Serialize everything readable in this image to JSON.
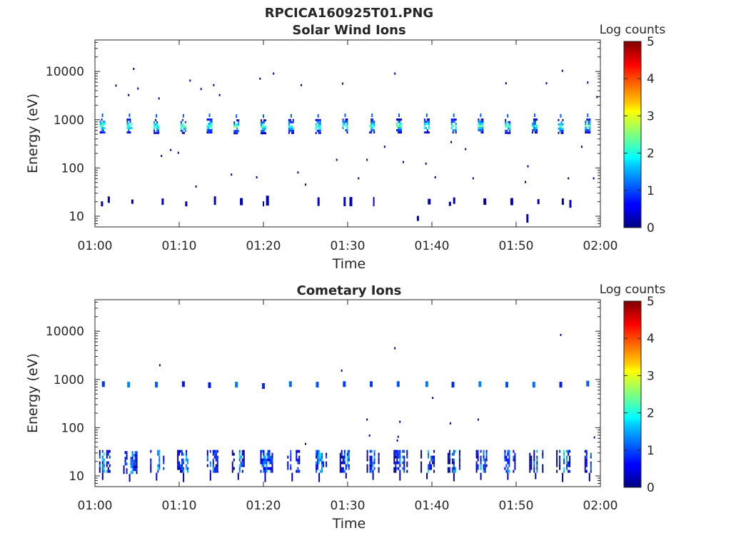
{
  "figure": {
    "title": "RPCICA160925T01.PNG"
  },
  "colorbar": {
    "label": "Log counts",
    "ticks": [
      "0",
      "1",
      "2",
      "3",
      "4",
      "5"
    ],
    "range": [
      0,
      5
    ],
    "colormap": "jet"
  },
  "chart_data": [
    {
      "type": "heatmap",
      "title": "Solar Wind Ions",
      "xlabel": "Time",
      "ylabel": "Energy (eV)",
      "x_ticks": [
        "01:00",
        "01:10",
        "01:20",
        "01:30",
        "01:40",
        "01:50",
        "02:00"
      ],
      "xlim_minutes": [
        0,
        60
      ],
      "y_scale": "log",
      "y_ticks": [
        "10",
        "100",
        "1000",
        "10000"
      ],
      "ylim": [
        6,
        45000
      ],
      "grid": false,
      "colorbar_label": "Log counts",
      "clim": [
        0,
        5
      ],
      "bursts": [
        {
          "t": 0.9,
          "energy": 780,
          "max_log_counts": 2.6
        },
        {
          "t": 4.1,
          "energy": 780,
          "max_log_counts": 2.6
        },
        {
          "t": 7.3,
          "energy": 760,
          "max_log_counts": 2.4
        },
        {
          "t": 10.5,
          "energy": 760,
          "max_log_counts": 2.6
        },
        {
          "t": 13.6,
          "energy": 780,
          "max_log_counts": 2.6
        },
        {
          "t": 16.8,
          "energy": 750,
          "max_log_counts": 2.5
        },
        {
          "t": 20.0,
          "energy": 750,
          "max_log_counts": 2.6
        },
        {
          "t": 23.3,
          "energy": 760,
          "max_log_counts": 2.4
        },
        {
          "t": 26.5,
          "energy": 760,
          "max_log_counts": 2.5
        },
        {
          "t": 29.7,
          "energy": 780,
          "max_log_counts": 2.5
        },
        {
          "t": 32.9,
          "energy": 780,
          "max_log_counts": 2.4
        },
        {
          "t": 36.1,
          "energy": 780,
          "max_log_counts": 2.6
        },
        {
          "t": 39.4,
          "energy": 780,
          "max_log_counts": 2.5
        },
        {
          "t": 42.6,
          "energy": 780,
          "max_log_counts": 2.4
        },
        {
          "t": 45.8,
          "energy": 780,
          "max_log_counts": 2.5
        },
        {
          "t": 49.0,
          "energy": 760,
          "max_log_counts": 2.4
        },
        {
          "t": 52.2,
          "energy": 780,
          "max_log_counts": 2.3
        },
        {
          "t": 55.3,
          "energy": 760,
          "max_log_counts": 2.4
        },
        {
          "t": 58.5,
          "energy": 780,
          "max_log_counts": 2.4
        }
      ],
      "low_energy_events": [
        {
          "t": 0.8,
          "energy": 18
        },
        {
          "t": 1.6,
          "energy": 22
        },
        {
          "t": 4.4,
          "energy": 20
        },
        {
          "t": 8.0,
          "energy": 20
        },
        {
          "t": 10.8,
          "energy": 18
        },
        {
          "t": 14.2,
          "energy": 21
        },
        {
          "t": 17.3,
          "energy": 20
        },
        {
          "t": 20.0,
          "energy": 18
        },
        {
          "t": 20.4,
          "energy": 21
        },
        {
          "t": 26.5,
          "energy": 20
        },
        {
          "t": 29.6,
          "energy": 20
        },
        {
          "t": 30.3,
          "energy": 20
        },
        {
          "t": 33.1,
          "energy": 20
        },
        {
          "t": 38.3,
          "energy": 9
        },
        {
          "t": 39.6,
          "energy": 20
        },
        {
          "t": 42.1,
          "energy": 18
        },
        {
          "t": 42.6,
          "energy": 21
        },
        {
          "t": 46.2,
          "energy": 20
        },
        {
          "t": 49.4,
          "energy": 20
        },
        {
          "t": 51.3,
          "energy": 9
        },
        {
          "t": 52.6,
          "energy": 20
        },
        {
          "t": 55.5,
          "energy": 20
        },
        {
          "t": 56.4,
          "energy": 18
        }
      ],
      "scatter": [
        {
          "t": 2.5,
          "energy": 5200
        },
        {
          "t": 4.6,
          "energy": 11500
        },
        {
          "t": 4.0,
          "energy": 3300
        },
        {
          "t": 5.1,
          "energy": 4500
        },
        {
          "t": 7.6,
          "energy": 2800
        },
        {
          "t": 11.3,
          "energy": 6600
        },
        {
          "t": 12.6,
          "energy": 4400
        },
        {
          "t": 14.1,
          "energy": 5300
        },
        {
          "t": 14.8,
          "energy": 3300
        },
        {
          "t": 19.6,
          "energy": 7200
        },
        {
          "t": 21.2,
          "energy": 9200
        },
        {
          "t": 24.5,
          "energy": 5300
        },
        {
          "t": 29.4,
          "energy": 5700
        },
        {
          "t": 35.6,
          "energy": 9200
        },
        {
          "t": 48.8,
          "energy": 5800
        },
        {
          "t": 53.6,
          "energy": 5800
        },
        {
          "t": 55.5,
          "energy": 10500
        },
        {
          "t": 58.5,
          "energy": 6000
        },
        {
          "t": 59.6,
          "energy": 3000
        },
        {
          "t": 7.9,
          "energy": 180
        },
        {
          "t": 9.0,
          "energy": 240
        },
        {
          "t": 9.9,
          "energy": 210
        },
        {
          "t": 12.0,
          "energy": 42
        },
        {
          "t": 16.2,
          "energy": 74
        },
        {
          "t": 19.2,
          "energy": 65
        },
        {
          "t": 24.1,
          "energy": 82
        },
        {
          "t": 25.0,
          "energy": 46
        },
        {
          "t": 28.7,
          "energy": 150
        },
        {
          "t": 31.3,
          "energy": 62
        },
        {
          "t": 32.3,
          "energy": 150
        },
        {
          "t": 34.4,
          "energy": 280
        },
        {
          "t": 36.6,
          "energy": 135
        },
        {
          "t": 39.3,
          "energy": 125
        },
        {
          "t": 40.4,
          "energy": 65
        },
        {
          "t": 42.3,
          "energy": 350
        },
        {
          "t": 44.0,
          "energy": 250
        },
        {
          "t": 44.9,
          "energy": 62
        },
        {
          "t": 51.1,
          "energy": 52
        },
        {
          "t": 51.4,
          "energy": 110
        },
        {
          "t": 56.2,
          "energy": 62
        },
        {
          "t": 57.8,
          "energy": 280
        },
        {
          "t": 59.2,
          "energy": 62
        }
      ]
    },
    {
      "type": "heatmap",
      "title": "Cometary Ions",
      "xlabel": "Time",
      "ylabel": "Energy (eV)",
      "x_ticks": [
        "01:00",
        "01:10",
        "01:20",
        "01:30",
        "01:40",
        "01:50",
        "02:00"
      ],
      "xlim_minutes": [
        0,
        60
      ],
      "y_scale": "log",
      "y_ticks": [
        "10",
        "100",
        "1000",
        "10000"
      ],
      "ylim": [
        6,
        45000
      ],
      "grid": false,
      "colorbar_label": "Log counts",
      "clim": [
        0,
        5
      ],
      "high_energy_events": [
        {
          "t": 1.0,
          "energy": 800
        },
        {
          "t": 4.0,
          "energy": 780
        },
        {
          "t": 7.3,
          "energy": 780
        },
        {
          "t": 10.5,
          "energy": 800
        },
        {
          "t": 13.6,
          "energy": 760
        },
        {
          "t": 16.8,
          "energy": 780
        },
        {
          "t": 20.0,
          "energy": 730
        },
        {
          "t": 23.2,
          "energy": 800
        },
        {
          "t": 26.4,
          "energy": 780
        },
        {
          "t": 29.6,
          "energy": 800
        },
        {
          "t": 32.8,
          "energy": 800
        },
        {
          "t": 36.0,
          "energy": 800
        },
        {
          "t": 39.4,
          "energy": 800
        },
        {
          "t": 42.5,
          "energy": 780
        },
        {
          "t": 45.7,
          "energy": 800
        },
        {
          "t": 48.9,
          "energy": 780
        },
        {
          "t": 52.1,
          "energy": 780
        },
        {
          "t": 55.3,
          "energy": 780
        },
        {
          "t": 58.5,
          "energy": 820
        }
      ],
      "low_energy_bursts": [
        {
          "t": 1.0,
          "energy": 20,
          "max_log_counts": 2.0
        },
        {
          "t": 4.2,
          "energy": 19,
          "max_log_counts": 1.9
        },
        {
          "t": 7.4,
          "energy": 20,
          "max_log_counts": 2.1
        },
        {
          "t": 10.6,
          "energy": 20,
          "max_log_counts": 2.0
        },
        {
          "t": 13.8,
          "energy": 20,
          "max_log_counts": 1.8
        },
        {
          "t": 17.1,
          "energy": 20,
          "max_log_counts": 1.9
        },
        {
          "t": 20.3,
          "energy": 20,
          "max_log_counts": 2.0
        },
        {
          "t": 23.5,
          "energy": 20,
          "max_log_counts": 1.9
        },
        {
          "t": 26.7,
          "energy": 20,
          "max_log_counts": 2.0
        },
        {
          "t": 29.9,
          "energy": 20,
          "max_log_counts": 1.8
        },
        {
          "t": 33.1,
          "energy": 20,
          "max_log_counts": 1.9
        },
        {
          "t": 36.3,
          "energy": 20,
          "max_log_counts": 1.9
        },
        {
          "t": 39.5,
          "energy": 20,
          "max_log_counts": 1.8
        },
        {
          "t": 42.7,
          "energy": 20,
          "max_log_counts": 1.8
        },
        {
          "t": 45.9,
          "energy": 20,
          "max_log_counts": 1.9
        },
        {
          "t": 49.1,
          "energy": 20,
          "max_log_counts": 1.9
        },
        {
          "t": 52.4,
          "energy": 20,
          "max_log_counts": 1.8
        },
        {
          "t": 55.6,
          "energy": 20,
          "max_log_counts": 2.0
        },
        {
          "t": 58.8,
          "energy": 20,
          "max_log_counts": 1.9
        }
      ],
      "scatter": [
        {
          "t": 7.7,
          "energy": 2000
        },
        {
          "t": 29.3,
          "energy": 1550
        },
        {
          "t": 35.6,
          "energy": 4500
        },
        {
          "t": 55.3,
          "energy": 8500
        },
        {
          "t": 40.1,
          "energy": 420
        },
        {
          "t": 25.0,
          "energy": 47
        },
        {
          "t": 32.3,
          "energy": 150
        },
        {
          "t": 32.6,
          "energy": 70
        },
        {
          "t": 36.2,
          "energy": 135
        },
        {
          "t": 36.0,
          "energy": 66
        },
        {
          "t": 35.9,
          "energy": 55
        },
        {
          "t": 42.2,
          "energy": 125
        },
        {
          "t": 45.5,
          "energy": 150
        },
        {
          "t": 59.3,
          "energy": 64
        }
      ]
    }
  ]
}
